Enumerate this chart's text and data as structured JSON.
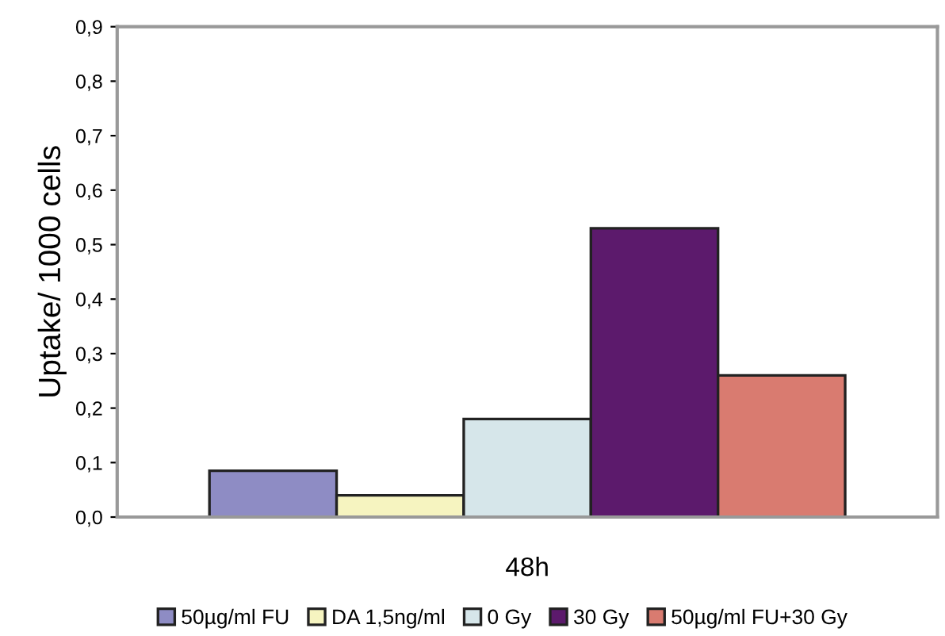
{
  "chart_data": {
    "type": "bar",
    "ylabel": "Uptake/ 1000 cells",
    "categories": [
      "48h"
    ],
    "series": [
      {
        "name": "50µg/ml FU",
        "color": "#8e8cc4",
        "values": [
          0.085
        ]
      },
      {
        "name": "DA 1,5ng/ml",
        "color": "#f6f4c0",
        "values": [
          0.04
        ]
      },
      {
        "name": "0 Gy",
        "color": "#d6e6ea",
        "values": [
          0.18
        ]
      },
      {
        "name": "30 Gy",
        "color": "#5c1a6c",
        "values": [
          0.53
        ]
      },
      {
        "name": "50µg/ml FU+30 Gy",
        "color": "#d97b70",
        "values": [
          0.26
        ]
      }
    ],
    "ylim": [
      0,
      0.9
    ],
    "yticks": [
      {
        "value": 0,
        "label": "0,0"
      },
      {
        "value": 0.1,
        "label": "0,1"
      },
      {
        "value": 0.2,
        "label": "0,2"
      },
      {
        "value": 0.3,
        "label": "0,3"
      },
      {
        "value": 0.4,
        "label": "0,4"
      },
      {
        "value": 0.5,
        "label": "0,5"
      },
      {
        "value": 0.6,
        "label": "0,6"
      },
      {
        "value": 0.7,
        "label": "0,7"
      },
      {
        "value": 0.8,
        "label": "0,8"
      },
      {
        "value": 0.9,
        "label": "0,9"
      }
    ],
    "grid": false,
    "legend": "bottom"
  }
}
